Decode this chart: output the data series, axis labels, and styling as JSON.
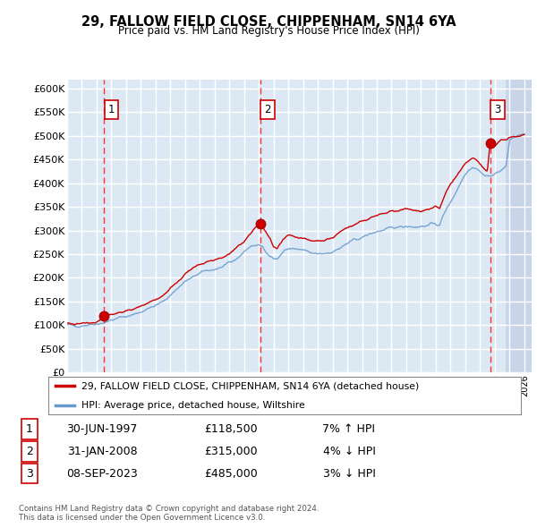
{
  "title": "29, FALLOW FIELD CLOSE, CHIPPENHAM, SN14 6YA",
  "subtitle": "Price paid vs. HM Land Registry's House Price Index (HPI)",
  "ylim": [
    0,
    620000
  ],
  "xlim_start": 1995.0,
  "xlim_end": 2026.5,
  "background_color": "#dce9f5",
  "grid_color": "#ffffff",
  "sale_points": [
    {
      "date_num": 1997.5,
      "price": 118500,
      "label": "1"
    },
    {
      "date_num": 2008.08,
      "price": 315000,
      "label": "2"
    },
    {
      "date_num": 2023.68,
      "price": 485000,
      "label": "3"
    }
  ],
  "vline_color": "#ff3333",
  "sale_dot_color": "#cc0000",
  "hpi_line_color": "#6699cc",
  "price_line_color": "#cc0000",
  "legend_entries": [
    "29, FALLOW FIELD CLOSE, CHIPPENHAM, SN14 6YA (detached house)",
    "HPI: Average price, detached house, Wiltshire"
  ],
  "table_rows": [
    {
      "num": "1",
      "date": "30-JUN-1997",
      "price": "£118,500",
      "pct": "7% ↑ HPI"
    },
    {
      "num": "2",
      "date": "31-JAN-2008",
      "price": "£315,000",
      "pct": "4% ↓ HPI"
    },
    {
      "num": "3",
      "date": "08-SEP-2023",
      "price": "£485,000",
      "pct": "3% ↓ HPI"
    }
  ],
  "footer": "Contains HM Land Registry data © Crown copyright and database right 2024.\nThis data is licensed under the Open Government Licence v3.0.",
  "hatch_start": 2024.75,
  "hpi_anchors": [
    [
      1995.0,
      100000
    ],
    [
      1995.5,
      98000
    ],
    [
      1996.0,
      99000
    ],
    [
      1996.5,
      101000
    ],
    [
      1997.0,
      103000
    ],
    [
      1997.5,
      105000
    ],
    [
      1998.0,
      110000
    ],
    [
      1998.5,
      115000
    ],
    [
      1999.0,
      118000
    ],
    [
      1999.5,
      122000
    ],
    [
      2000.0,
      128000
    ],
    [
      2000.5,
      135000
    ],
    [
      2001.0,
      140000
    ],
    [
      2001.5,
      150000
    ],
    [
      2002.0,
      163000
    ],
    [
      2002.5,
      178000
    ],
    [
      2003.0,
      192000
    ],
    [
      2003.5,
      200000
    ],
    [
      2004.0,
      210000
    ],
    [
      2004.5,
      215000
    ],
    [
      2005.0,
      218000
    ],
    [
      2005.5,
      222000
    ],
    [
      2006.0,
      230000
    ],
    [
      2006.5,
      240000
    ],
    [
      2007.0,
      255000
    ],
    [
      2007.5,
      268000
    ],
    [
      2008.0,
      268000
    ],
    [
      2008.25,
      265000
    ],
    [
      2008.5,
      255000
    ],
    [
      2008.75,
      248000
    ],
    [
      2009.0,
      240000
    ],
    [
      2009.25,
      240000
    ],
    [
      2009.5,
      248000
    ],
    [
      2009.75,
      258000
    ],
    [
      2010.0,
      262000
    ],
    [
      2010.5,
      260000
    ],
    [
      2011.0,
      258000
    ],
    [
      2011.5,
      252000
    ],
    [
      2012.0,
      250000
    ],
    [
      2012.5,
      252000
    ],
    [
      2013.0,
      255000
    ],
    [
      2013.5,
      262000
    ],
    [
      2014.0,
      272000
    ],
    [
      2014.5,
      280000
    ],
    [
      2015.0,
      285000
    ],
    [
      2015.5,
      292000
    ],
    [
      2016.0,
      298000
    ],
    [
      2016.5,
      300000
    ],
    [
      2017.0,
      305000
    ],
    [
      2017.5,
      308000
    ],
    [
      2018.0,
      310000
    ],
    [
      2018.5,
      308000
    ],
    [
      2019.0,
      308000
    ],
    [
      2019.5,
      312000
    ],
    [
      2020.0,
      315000
    ],
    [
      2020.25,
      310000
    ],
    [
      2020.5,
      330000
    ],
    [
      2020.75,
      348000
    ],
    [
      2021.0,
      360000
    ],
    [
      2021.25,
      375000
    ],
    [
      2021.5,
      390000
    ],
    [
      2021.75,
      405000
    ],
    [
      2022.0,
      420000
    ],
    [
      2022.25,
      430000
    ],
    [
      2022.5,
      435000
    ],
    [
      2022.75,
      432000
    ],
    [
      2023.0,
      425000
    ],
    [
      2023.25,
      418000
    ],
    [
      2023.5,
      415000
    ],
    [
      2023.75,
      415000
    ],
    [
      2024.0,
      418000
    ],
    [
      2024.25,
      425000
    ],
    [
      2024.5,
      430000
    ],
    [
      2024.75,
      435000
    ],
    [
      2025.0,
      490000
    ],
    [
      2025.5,
      500000
    ],
    [
      2026.0,
      505000
    ]
  ],
  "price_anchors": [
    [
      1995.0,
      103000
    ],
    [
      1995.5,
      101000
    ],
    [
      1996.0,
      102000
    ],
    [
      1996.5,
      104000
    ],
    [
      1997.0,
      107000
    ],
    [
      1997.5,
      118500
    ],
    [
      1998.0,
      122000
    ],
    [
      1998.5,
      127000
    ],
    [
      1999.0,
      130000
    ],
    [
      1999.5,
      133000
    ],
    [
      2000.0,
      140000
    ],
    [
      2000.5,
      148000
    ],
    [
      2001.0,
      153000
    ],
    [
      2001.5,
      163000
    ],
    [
      2002.0,
      177000
    ],
    [
      2002.5,
      193000
    ],
    [
      2003.0,
      208000
    ],
    [
      2003.5,
      218000
    ],
    [
      2004.0,
      228000
    ],
    [
      2004.5,
      233000
    ],
    [
      2005.0,
      238000
    ],
    [
      2005.5,
      242000
    ],
    [
      2006.0,
      250000
    ],
    [
      2006.5,
      262000
    ],
    [
      2007.0,
      278000
    ],
    [
      2007.5,
      295000
    ],
    [
      2008.0,
      315000
    ],
    [
      2008.1,
      315000
    ],
    [
      2008.25,
      308000
    ],
    [
      2008.5,
      295000
    ],
    [
      2008.75,
      282000
    ],
    [
      2009.0,
      265000
    ],
    [
      2009.25,
      262000
    ],
    [
      2009.5,
      272000
    ],
    [
      2009.75,
      282000
    ],
    [
      2010.0,
      288000
    ],
    [
      2010.5,
      285000
    ],
    [
      2011.0,
      282000
    ],
    [
      2011.5,
      278000
    ],
    [
      2012.0,
      278000
    ],
    [
      2012.5,
      280000
    ],
    [
      2013.0,
      285000
    ],
    [
      2013.5,
      295000
    ],
    [
      2014.0,
      305000
    ],
    [
      2014.5,
      315000
    ],
    [
      2015.0,
      320000
    ],
    [
      2015.5,
      325000
    ],
    [
      2016.0,
      330000
    ],
    [
      2016.5,
      335000
    ],
    [
      2017.0,
      340000
    ],
    [
      2017.5,
      342000
    ],
    [
      2018.0,
      345000
    ],
    [
      2018.5,
      342000
    ],
    [
      2019.0,
      342000
    ],
    [
      2019.5,
      345000
    ],
    [
      2020.0,
      350000
    ],
    [
      2020.25,
      345000
    ],
    [
      2020.5,
      365000
    ],
    [
      2020.75,
      385000
    ],
    [
      2021.0,
      398000
    ],
    [
      2021.25,
      408000
    ],
    [
      2021.5,
      418000
    ],
    [
      2021.75,
      428000
    ],
    [
      2022.0,
      440000
    ],
    [
      2022.25,
      448000
    ],
    [
      2022.5,
      452000
    ],
    [
      2022.75,
      448000
    ],
    [
      2023.0,
      440000
    ],
    [
      2023.25,
      432000
    ],
    [
      2023.5,
      428000
    ],
    [
      2023.68,
      485000
    ],
    [
      2023.75,
      482000
    ],
    [
      2024.0,
      478000
    ],
    [
      2024.25,
      485000
    ],
    [
      2024.5,
      490000
    ],
    [
      2024.75,
      493000
    ],
    [
      2025.0,
      498000
    ],
    [
      2025.5,
      500000
    ],
    [
      2026.0,
      502000
    ]
  ]
}
